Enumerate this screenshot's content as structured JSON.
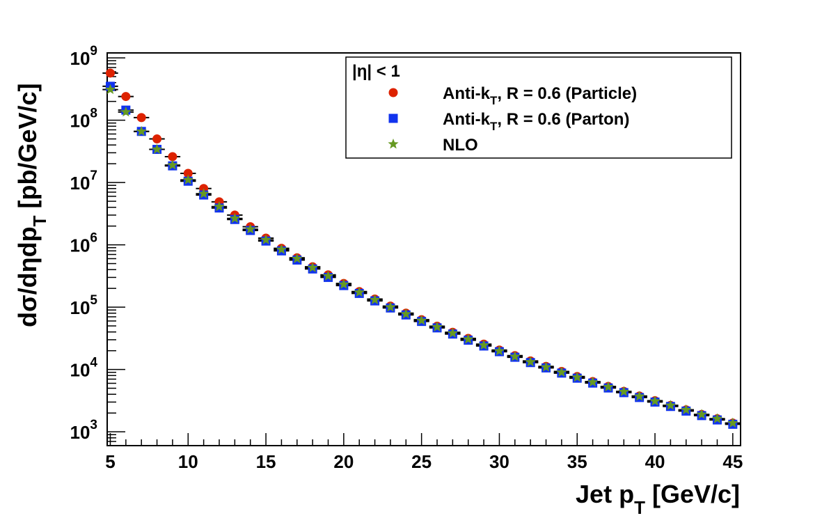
{
  "chart_data": {
    "type": "scatter",
    "xlabel": "Jet p",
    "xlabel_sub": "T",
    "xlabel_unit": " [GeV/c]",
    "ylabel": "dσ/dηdp",
    "ylabel_sub": "T",
    "ylabel_unit": " [pb/GeV/c]",
    "xlim": [
      4.8,
      45.5
    ],
    "ylim": [
      600,
      1200000000
    ],
    "yscale": "log",
    "x_ticks": [
      5,
      10,
      15,
      20,
      25,
      30,
      35,
      40,
      45
    ],
    "y_ticks": [
      {
        "base": "10",
        "exp": "3",
        "value": 1000
      },
      {
        "base": "10",
        "exp": "4",
        "value": 10000
      },
      {
        "base": "10",
        "exp": "5",
        "value": 100000
      },
      {
        "base": "10",
        "exp": "6",
        "value": 1000000
      },
      {
        "base": "10",
        "exp": "7",
        "value": 10000000
      },
      {
        "base": "10",
        "exp": "8",
        "value": 100000000
      },
      {
        "base": "10",
        "exp": "9",
        "value": 1000000000
      }
    ],
    "legend": {
      "header": "|η| < 1",
      "position": "top-right"
    },
    "x": [
      5,
      6,
      7,
      8,
      9,
      10,
      11,
      12,
      13,
      14,
      15,
      16,
      17,
      18,
      19,
      20,
      21,
      22,
      23,
      24,
      25,
      26,
      27,
      28,
      29,
      30,
      31,
      32,
      33,
      34,
      35,
      36,
      37,
      38,
      39,
      40,
      41,
      42,
      43,
      44,
      45
    ],
    "series": [
      {
        "name": "Anti-k",
        "name_sub": "T",
        "name_rest": ", R = 0.6 (Particle)",
        "marker": "circle",
        "color": "#dd2200",
        "values": [
          570000000,
          240000000,
          110000000,
          50000000,
          26000000,
          14000000,
          8000000,
          4900000,
          3000000,
          1950000,
          1280000,
          880000,
          620000,
          445000,
          330000,
          240000,
          178000,
          135000,
          104000,
          80000,
          63000,
          49500,
          39500,
          31500,
          25500,
          20500,
          16700,
          13700,
          11200,
          9300,
          7700,
          6400,
          5350,
          4450,
          3750,
          3150,
          2650,
          2250,
          1900,
          1620,
          1380
        ]
      },
      {
        "name": "Anti-k",
        "name_sub": "T",
        "name_rest": ", R = 0.6 (Parton)",
        "marker": "square",
        "color": "#1133ee",
        "values": [
          350000000,
          145000000,
          66000000,
          34000000,
          18500000,
          10500000,
          6300000,
          3900000,
          2550000,
          1700000,
          1150000,
          800000,
          570000,
          410000,
          300000,
          222000,
          166000,
          126000,
          97000,
          75000,
          59000,
          46500,
          37000,
          29500,
          23800,
          19300,
          15700,
          12900,
          10600,
          8750,
          7250,
          6050,
          5050,
          4250,
          3550,
          3000,
          2550,
          2150,
          1820,
          1550,
          1320
        ]
      },
      {
        "name": "NLO",
        "name_sub": "",
        "name_rest": "",
        "marker": "star",
        "color": "#669922",
        "values": [
          310000000,
          135000000,
          66000000,
          34000000,
          19000000,
          11000000,
          6600000,
          4100000,
          2650000,
          1780000,
          1200000,
          840000,
          600000,
          430000,
          315000,
          232000,
          173000,
          131000,
          100000,
          77500,
          61000,
          48000,
          38200,
          30500,
          24500,
          19800,
          16100,
          13200,
          10900,
          9000,
          7500,
          6250,
          5250,
          4400,
          3700,
          3100,
          2650,
          2250,
          1900,
          1620,
          1380
        ]
      }
    ]
  }
}
